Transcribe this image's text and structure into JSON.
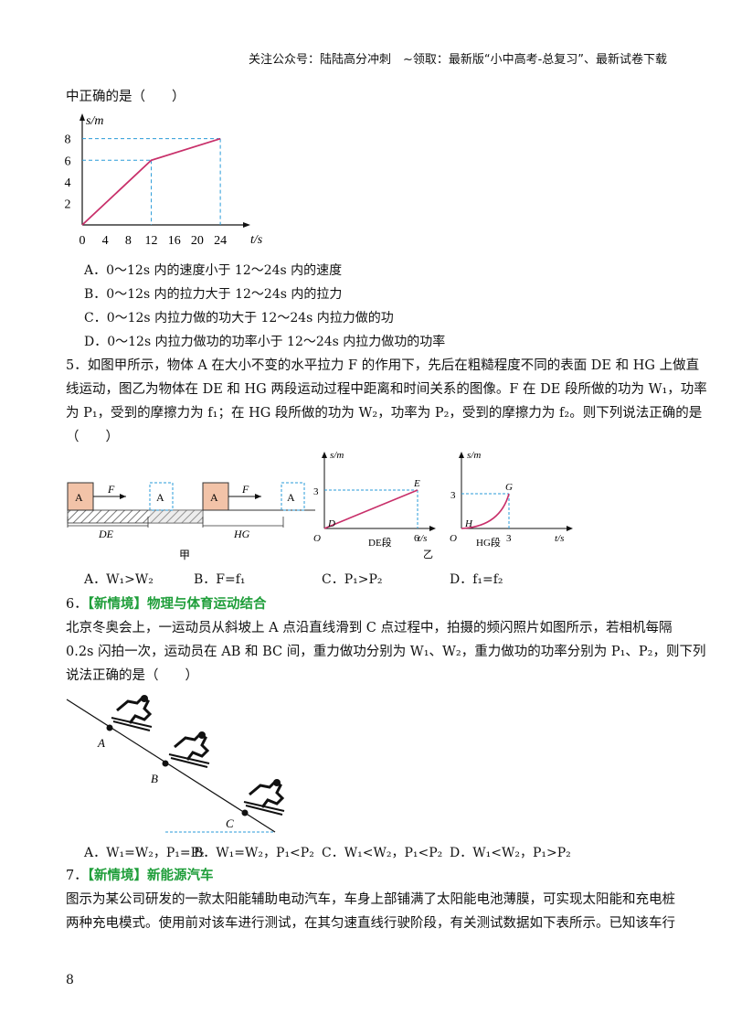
{
  "header": {
    "text": "关注公众号：陆陆高分冲刺　~领取：最新版“小中高考-总复习”、最新试卷下载"
  },
  "q4": {
    "stem_tail": "中正确的是（　　）",
    "options": [
      "A．0～12s 内的速度小于 12～24s 内的速度",
      "B．0～12s 内的拉力大于 12～24s 内的拉力",
      "C．0～12s 内拉力做的功大于 12～24s 内拉力做的功",
      "D．0～12s 内拉力做功的功率小于 12～24s 内拉力做功的功率"
    ]
  },
  "chart_data": {
    "type": "line",
    "xlabel": "t/s",
    "ylabel": "s/m",
    "x_ticks": [
      "0",
      "4",
      "8",
      "12",
      "16",
      "20",
      "24"
    ],
    "y_ticks": [
      "2",
      "4",
      "6",
      "8"
    ],
    "series": [
      {
        "x": [
          0,
          12,
          24
        ],
        "y": [
          0,
          6,
          8
        ]
      }
    ],
    "xlim": [
      0,
      27
    ],
    "ylim": [
      0,
      9.5
    ]
  },
  "q5": {
    "lines": [
      "5．如图甲所示，物体 A 在大小不变的水平拉力 F 的作用下，先后在粗糙程度不同的表面 DE 和 HG 上做直",
      "线运动，图乙为物体在 DE 和 HG 两段运动过程中距离和时间关系的图像。F 在 DE 段所做的功为 W₁，功率",
      "为 P₁，受到的摩擦力为 f₁；在 HG 段所做的功为 W₂，功率为 P₂，受到的摩擦力为 f₂。则下列说法正确的是",
      "（　　）"
    ],
    "fig_jia": {
      "block": "A",
      "force": "F",
      "seg1": "DE",
      "seg2": "HG",
      "caption": "甲"
    },
    "fig_yi": {
      "caption": "乙",
      "left": {
        "ylabel": "s/m",
        "xlabel": "t/s",
        "ytick": "3",
        "xtick": "6",
        "origin": "O",
        "start": "D",
        "end": "E",
        "seg": "DE段"
      },
      "right": {
        "ylabel": "s/m",
        "xlabel": "t/s",
        "ytick": "3",
        "xtick": "3",
        "origin": "O",
        "start": "H",
        "end": "G",
        "seg": "HG段"
      }
    },
    "options": [
      "A．W₁>W₂",
      "B．F=f₁",
      "C．P₁>P₂",
      "D．f₁=f₂"
    ]
  },
  "q6": {
    "num": "6．",
    "tag": "【新情境】物理与体育运动结合",
    "lines": [
      "北京冬奥会上，一运动员从斜坡上 A 点沿直线滑到 C 点过程中，拍摄的频闪照片如图所示，若相机每隔",
      "0.2s 闪拍一次，运动员在 AB 和 BC 间，重力做功分别为 W₁、W₂，重力做功的功率分别为 P₁、P₂，则下列",
      "说法正确的是（　　）"
    ],
    "points": [
      "A",
      "B",
      "C"
    ],
    "options": [
      "A．W₁=W₂，P₁=P₂",
      "B．W₁=W₂，P₁<P₂",
      "C．W₁<W₂，P₁<P₂",
      "D．W₁<W₂，P₁>P₂"
    ]
  },
  "q7": {
    "num": "7．",
    "tag": "【新情境】新能源汽车",
    "lines": [
      "图示为某公司研发的一款太阳能辅助电动汽车，车身上部铺满了太阳能电池薄膜，可实现太阳能和充电桩",
      "两种充电模式。使用前对该车进行测试，在其匀速直线行驶阶段，有关测试数据如下表所示。已知该车行"
    ]
  },
  "page_number": "8",
  "colors": {
    "curve": "#c8306a",
    "dash": "#2a9bd8",
    "tag": "#1f9e3a"
  }
}
